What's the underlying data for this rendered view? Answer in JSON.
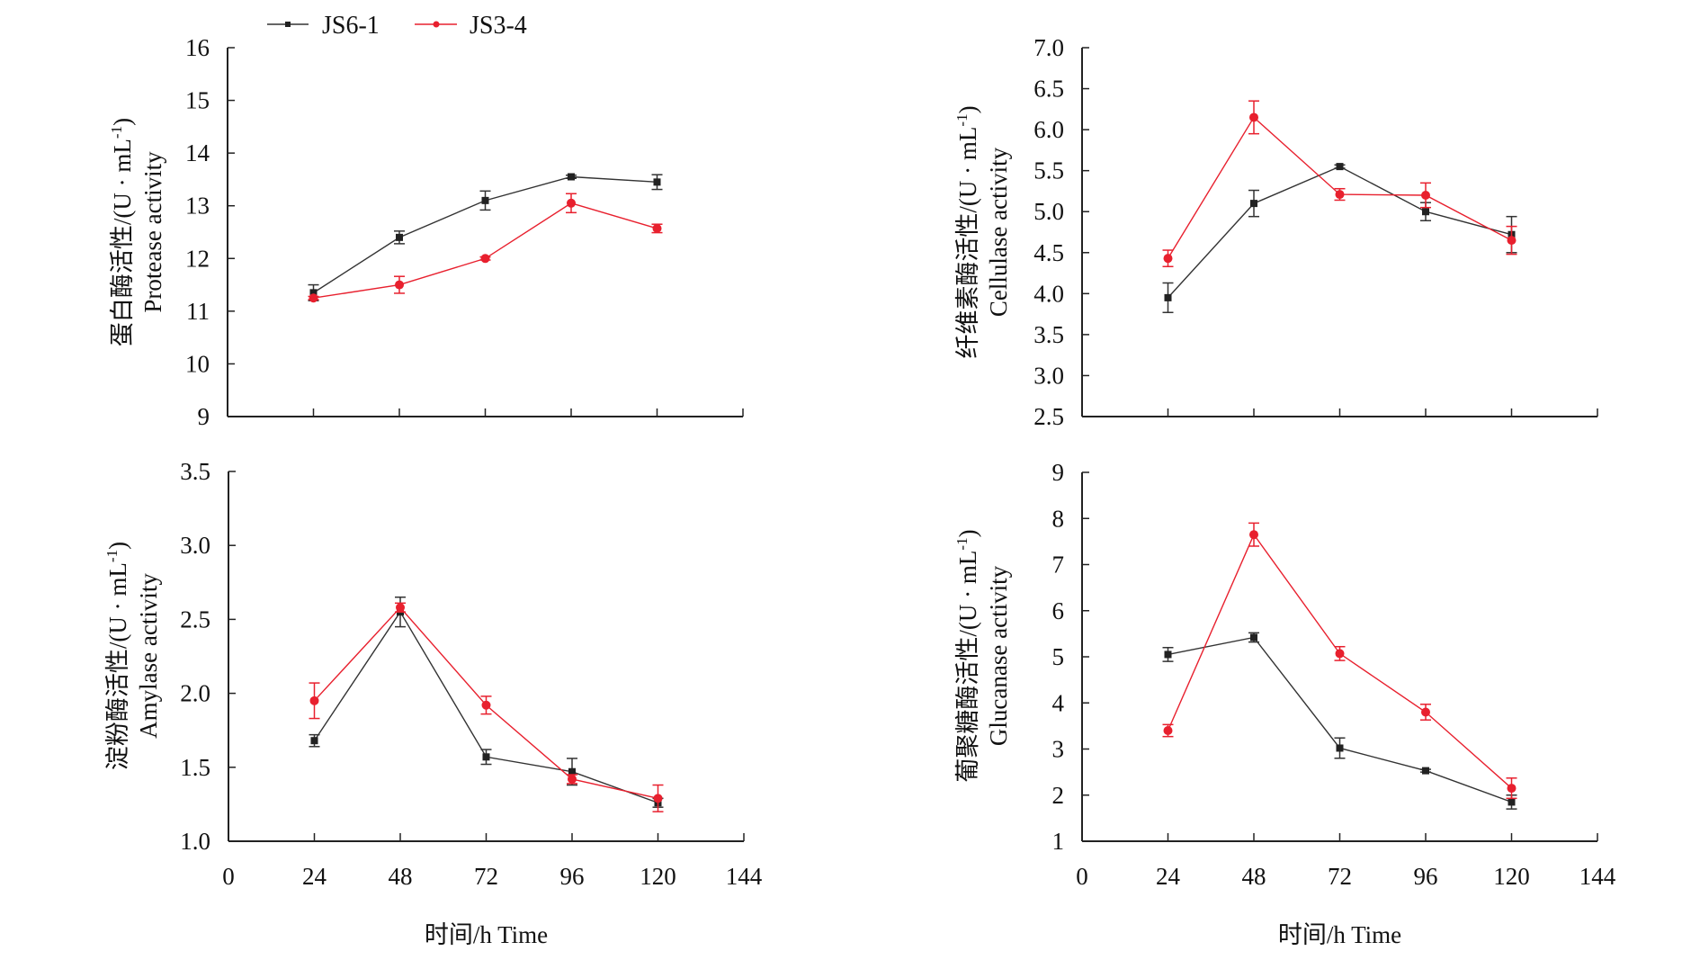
{
  "legend": [
    {
      "name": "JS6-1",
      "color": "#333333",
      "marker": "square"
    },
    {
      "name": "JS3-4",
      "color": "#e8202e",
      "marker": "circle"
    }
  ],
  "chart_data": [
    {
      "type": "line",
      "id": "protease",
      "ylabel_cn": "蛋白酶活性/(U · mL",
      "ylabel_en": "Protease activity",
      "xlabel": "",
      "x": [
        24,
        48,
        72,
        96,
        120
      ],
      "xlim": [
        0,
        144
      ],
      "xticks": [
        0,
        24,
        48,
        72,
        96,
        120,
        144
      ],
      "show_xtick_labels": false,
      "ylim": [
        9,
        16
      ],
      "yticks": [
        "9",
        "10",
        "11",
        "12",
        "13",
        "14",
        "15",
        "16"
      ],
      "series": [
        {
          "name": "JS6-1",
          "values": [
            11.35,
            12.4,
            13.1,
            13.55,
            13.45
          ],
          "errors": [
            0.15,
            0.12,
            0.18,
            0.03,
            0.14
          ]
        },
        {
          "name": "JS3-4",
          "values": [
            11.25,
            11.5,
            12.0,
            13.05,
            12.57
          ],
          "errors": [
            0.03,
            0.16,
            0.03,
            0.18,
            0.08
          ]
        }
      ],
      "grid": false
    },
    {
      "type": "line",
      "id": "cellulase",
      "ylabel_cn": "纤维素酶活性/(U · mL",
      "ylabel_en": "Cellulase activity",
      "xlabel": "",
      "x": [
        24,
        48,
        72,
        96,
        120
      ],
      "xlim": [
        0,
        144
      ],
      "xticks": [
        0,
        24,
        48,
        72,
        96,
        120,
        144
      ],
      "show_xtick_labels": false,
      "ylim": [
        2.5,
        7.0
      ],
      "yticks": [
        "2.5",
        "3.0",
        "3.5",
        "4.0",
        "4.5",
        "5.0",
        "5.5",
        "6.0",
        "6.5",
        "7.0"
      ],
      "series": [
        {
          "name": "JS6-1",
          "values": [
            3.95,
            5.1,
            5.55,
            5.0,
            4.72
          ],
          "errors": [
            0.18,
            0.16,
            0.02,
            0.11,
            0.22
          ]
        },
        {
          "name": "JS3-4",
          "values": [
            4.43,
            6.15,
            5.21,
            5.2,
            4.65
          ],
          "errors": [
            0.1,
            0.2,
            0.07,
            0.15,
            0.17
          ]
        }
      ],
      "grid": false
    },
    {
      "type": "line",
      "id": "amylase",
      "ylabel_cn": "淀粉酶活性/(U · mL",
      "ylabel_en": "Amylase activity",
      "xlabel": "时间/h Time",
      "x": [
        24,
        48,
        72,
        96,
        120
      ],
      "xlim": [
        0,
        144
      ],
      "xticks": [
        0,
        24,
        48,
        72,
        96,
        120,
        144
      ],
      "xtick_labels": [
        "0",
        "24",
        "48",
        "72",
        "96",
        "120",
        "144"
      ],
      "show_xtick_labels": true,
      "ylim": [
        1.0,
        3.5
      ],
      "yticks": [
        "1.0",
        "1.5",
        "2.0",
        "2.5",
        "3.0",
        "3.5"
      ],
      "series": [
        {
          "name": "JS6-1",
          "values": [
            1.68,
            2.55,
            1.57,
            1.47,
            1.26
          ],
          "errors": [
            0.04,
            0.1,
            0.05,
            0.09,
            0.03
          ]
        },
        {
          "name": "JS3-4",
          "values": [
            1.95,
            2.58,
            1.92,
            1.42,
            1.29
          ],
          "errors": [
            0.12,
            0.03,
            0.06,
            0.03,
            0.09
          ]
        }
      ],
      "grid": false
    },
    {
      "type": "line",
      "id": "glucanase",
      "ylabel_cn": "葡聚糖酶活性/(U · mL",
      "ylabel_en": "Glucanase activity",
      "xlabel": "时间/h Time",
      "x": [
        24,
        48,
        72,
        96,
        120
      ],
      "xlim": [
        0,
        144
      ],
      "xticks": [
        0,
        24,
        48,
        72,
        96,
        120,
        144
      ],
      "xtick_labels": [
        "0",
        "24",
        "48",
        "72",
        "96",
        "120",
        "144"
      ],
      "show_xtick_labels": true,
      "ylim": [
        1,
        9
      ],
      "yticks": [
        "1",
        "2",
        "3",
        "4",
        "5",
        "6",
        "7",
        "8",
        "9"
      ],
      "series": [
        {
          "name": "JS6-1",
          "values": [
            5.05,
            5.42,
            3.02,
            2.53,
            1.85
          ],
          "errors": [
            0.15,
            0.1,
            0.22,
            0.03,
            0.15
          ]
        },
        {
          "name": "JS3-4",
          "values": [
            3.4,
            7.65,
            5.07,
            3.8,
            2.15
          ],
          "errors": [
            0.13,
            0.25,
            0.15,
            0.17,
            0.22
          ]
        }
      ],
      "grid": false
    }
  ]
}
